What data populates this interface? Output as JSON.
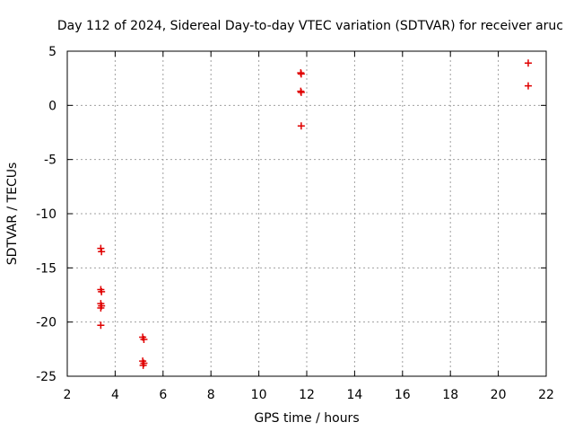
{
  "chart_data": {
    "type": "scatter",
    "title": "Day 112 of 2024, Sidereal Day-to-day VTEC variation (SDTVAR) for receiver aruc",
    "xlabel": "GPS time / hours",
    "ylabel": "SDTVAR / TECUs",
    "xlim": [
      2,
      22
    ],
    "ylim": [
      -25,
      5
    ],
    "xticks": [
      2,
      4,
      6,
      8,
      10,
      12,
      14,
      16,
      18,
      20,
      22
    ],
    "xtick_labels": [
      "2",
      "4",
      "6",
      "8",
      "10",
      "12",
      "14",
      "16",
      "18",
      "20",
      "22"
    ],
    "yticks": [
      -25,
      -20,
      -15,
      -10,
      -5,
      0,
      5
    ],
    "ytick_labels": [
      "-25",
      "-20",
      "-15",
      "-10",
      "-5",
      "0",
      "5"
    ],
    "grid": true,
    "series": [
      {
        "name": "aruc",
        "color": "#e00000",
        "marker": "plus",
        "points": [
          [
            3.4,
            -13.2
          ],
          [
            3.43,
            -13.5
          ],
          [
            3.4,
            -17.0
          ],
          [
            3.43,
            -17.2
          ],
          [
            3.4,
            -18.3
          ],
          [
            3.43,
            -18.5
          ],
          [
            3.4,
            -18.7
          ],
          [
            3.4,
            -20.3
          ],
          [
            5.15,
            -21.4
          ],
          [
            5.2,
            -21.6
          ],
          [
            5.15,
            -23.6
          ],
          [
            5.2,
            -23.8
          ],
          [
            5.17,
            -24.0
          ],
          [
            11.75,
            3.0
          ],
          [
            11.77,
            2.9
          ],
          [
            11.75,
            1.3
          ],
          [
            11.77,
            1.2
          ],
          [
            11.77,
            -1.9
          ],
          [
            21.25,
            3.9
          ],
          [
            21.25,
            1.8
          ]
        ]
      }
    ]
  }
}
